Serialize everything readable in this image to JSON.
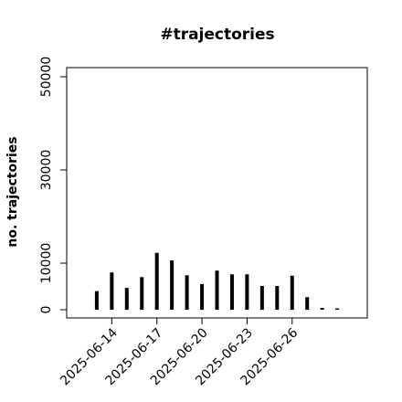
{
  "chart_data": {
    "type": "bar",
    "title": "#trajectories",
    "y_label": "no. trajectories",
    "x": [
      "2025-06-13",
      "2025-06-14",
      "2025-06-15",
      "2025-06-16",
      "2025-06-17",
      "2025-06-18",
      "2025-06-19",
      "2025-06-20",
      "2025-06-21",
      "2025-06-22",
      "2025-06-23",
      "2025-06-24",
      "2025-06-25",
      "2025-06-26",
      "2025-06-27",
      "2025-06-28",
      "2025-06-29"
    ],
    "values": [
      4000,
      8000,
      4700,
      7000,
      12200,
      10600,
      7400,
      5500,
      8400,
      7600,
      7600,
      5100,
      5100,
      7300,
      2700,
      400,
      300
    ],
    "color": "#000000",
    "xlim": [
      "2025-06-11",
      "2025-07-01"
    ],
    "xticks": [
      "2025-06-14",
      "2025-06-17",
      "2025-06-20",
      "2025-06-23",
      "2025-06-26"
    ],
    "ylim": [
      -1760,
      51960
    ],
    "yticks": [
      0,
      10000,
      30000,
      50000
    ]
  }
}
